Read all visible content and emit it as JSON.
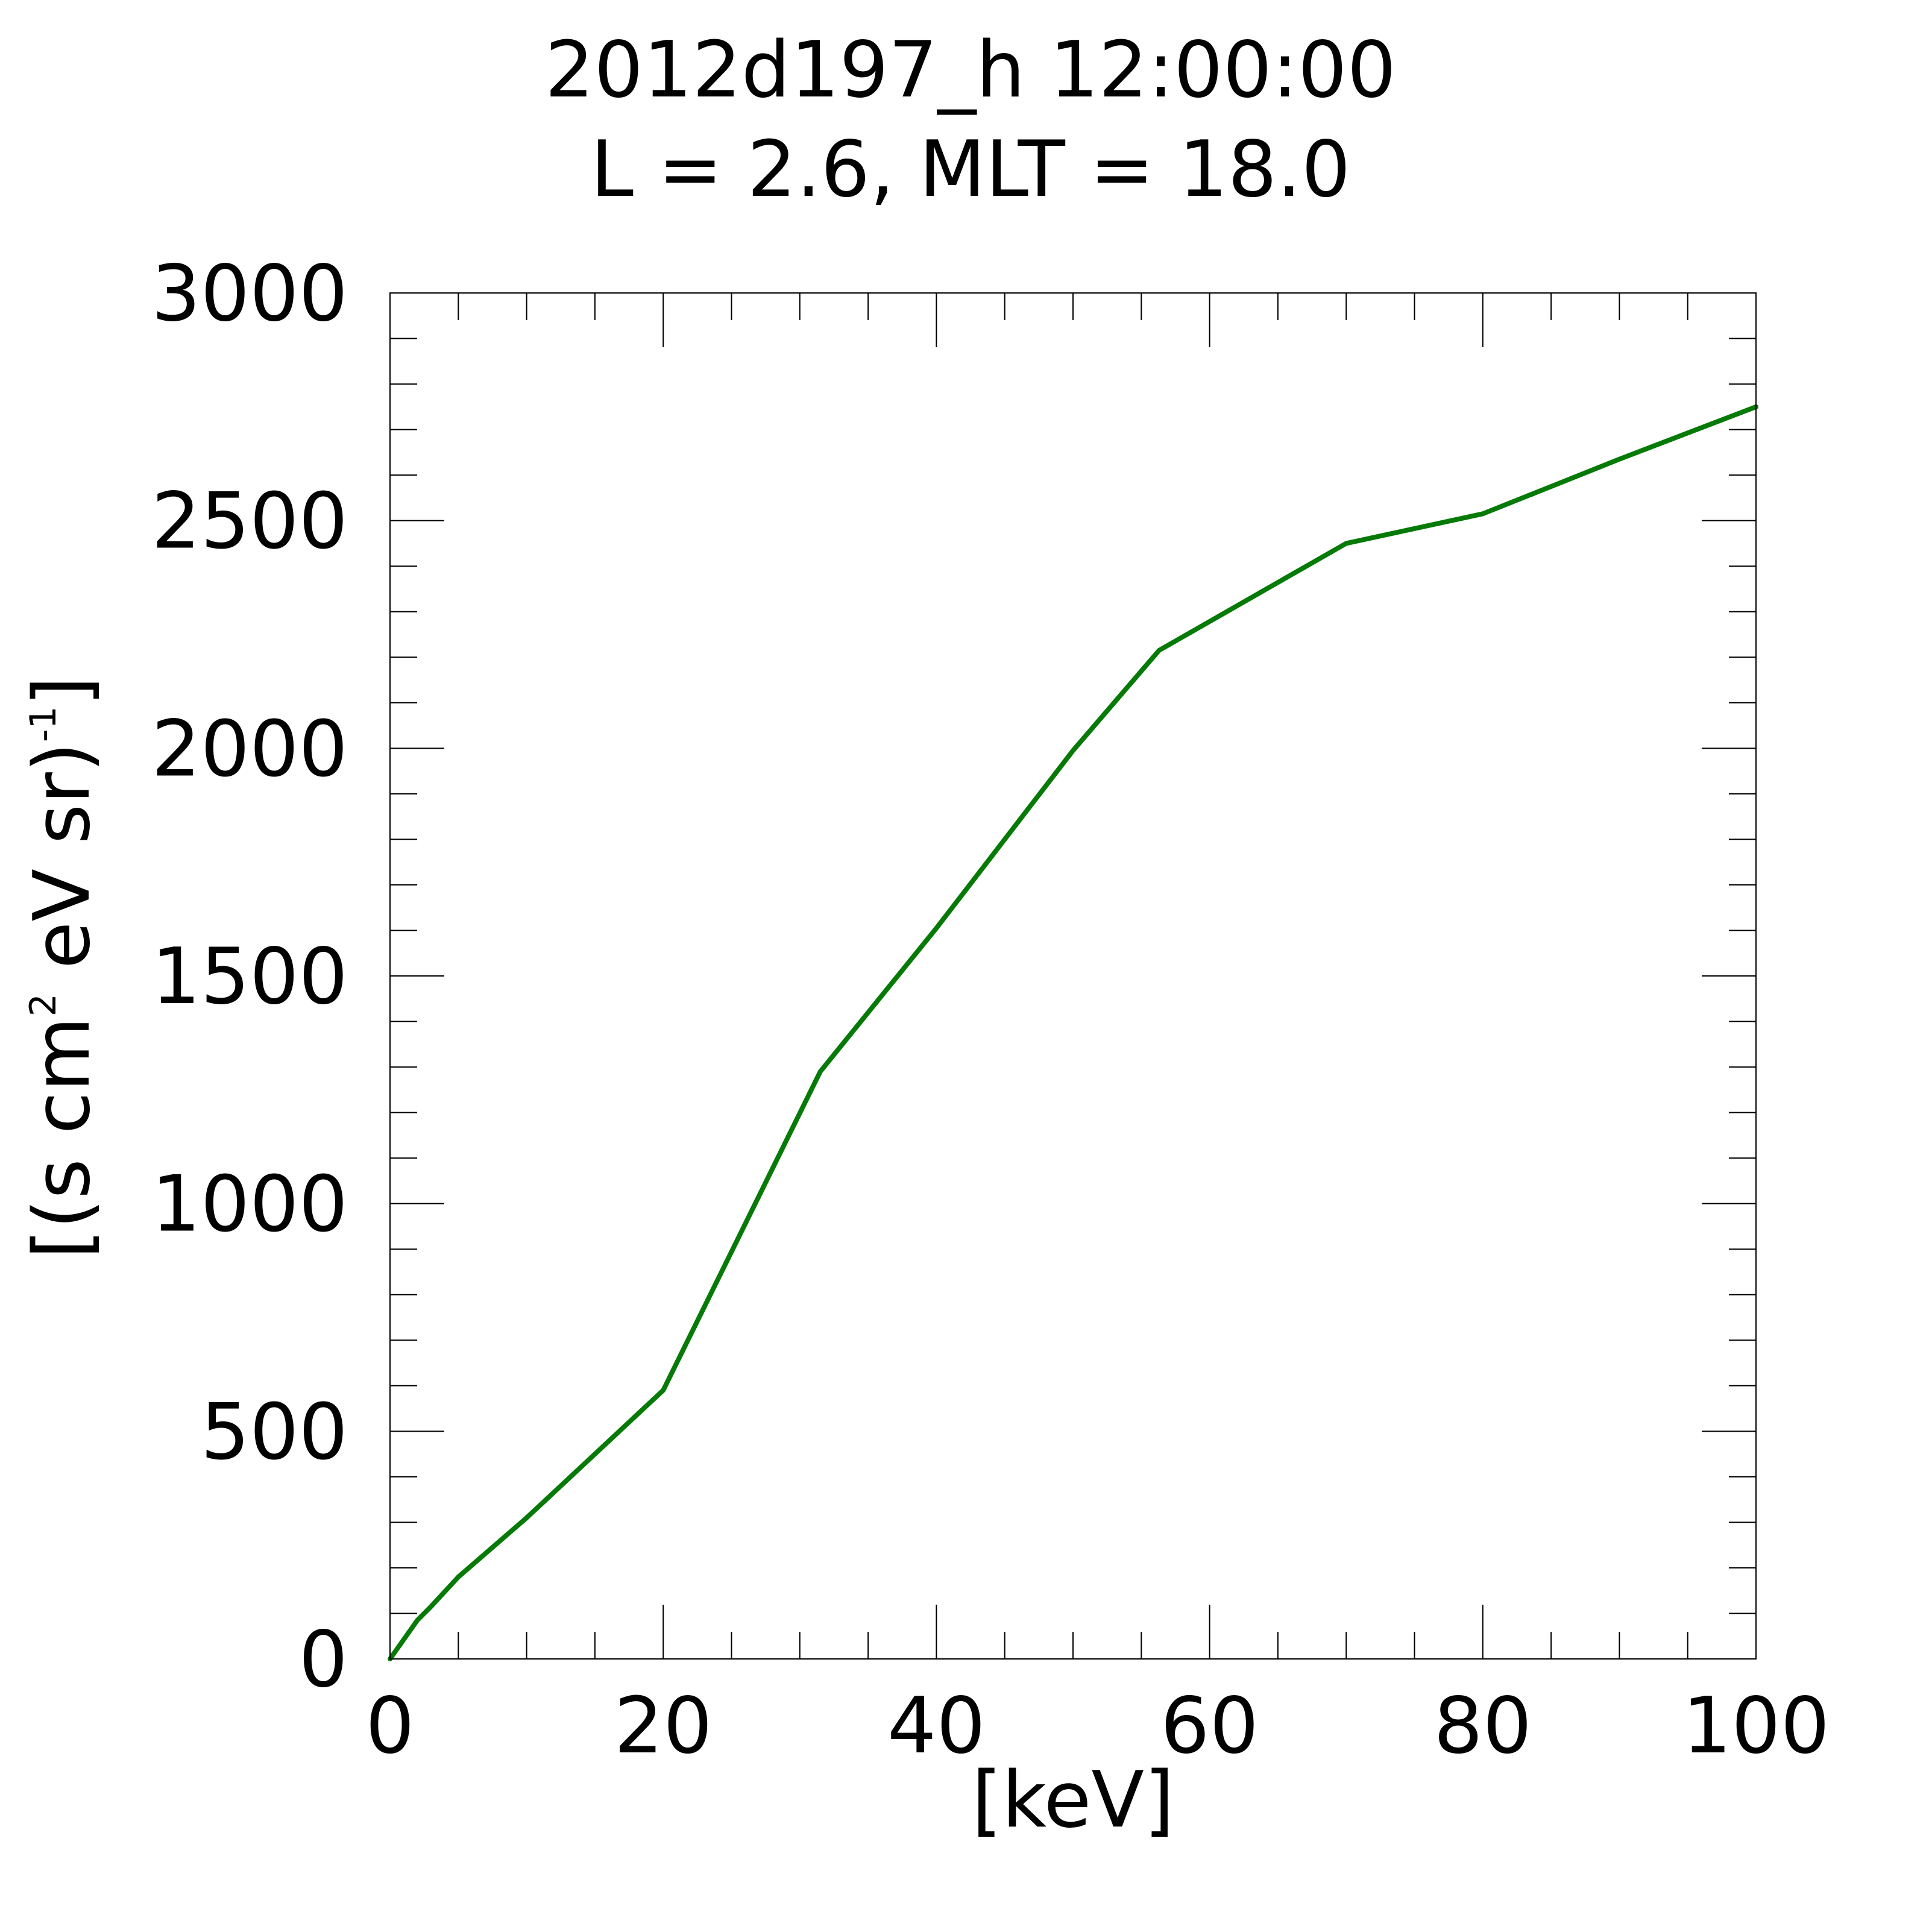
{
  "chart_data": {
    "type": "line",
    "title": "2012d197_h  12:00:00",
    "subtitle": "L = 2.6, MLT = 18.0",
    "xlabel": "[keV]",
    "ylabel": {
      "part1": "[(s cm",
      "sup1": "2",
      "part2": " eV sr)",
      "sup2": "-1",
      "part3": "]"
    },
    "xlim": [
      0,
      100
    ],
    "ylim": [
      0,
      3000
    ],
    "x_ticks": [
      0,
      20,
      40,
      60,
      80,
      100
    ],
    "y_ticks": [
      0,
      500,
      1000,
      1500,
      2000,
      2500,
      3000
    ],
    "x_minor_step": 5,
    "y_minor_step": 100,
    "grid": false,
    "series": [
      {
        "color": "#067a06",
        "x": [
          0,
          2,
          3,
          5,
          10,
          20,
          31.5,
          40,
          50,
          56.3,
          70,
          80,
          90,
          100
        ],
        "y": [
          0,
          85,
          115,
          180,
          310,
          590,
          1290,
          1605,
          1995,
          2215,
          2450,
          2515,
          2635,
          2750
        ]
      }
    ]
  }
}
